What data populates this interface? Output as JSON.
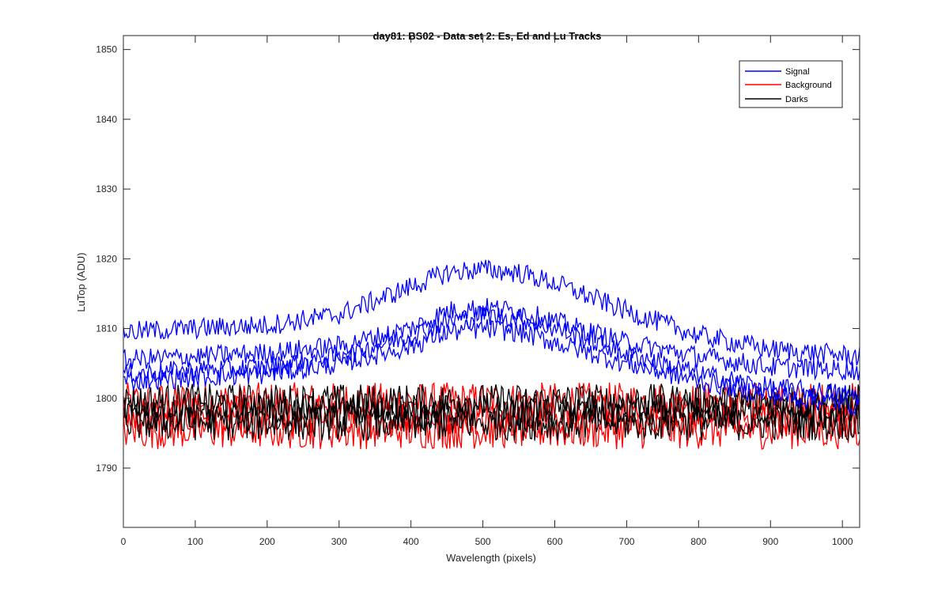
{
  "chart_data": {
    "type": "line",
    "title": "day81: BS02 - Data set 2: Es, Ed and Lu Tracks",
    "xlabel": "Wavelength (pixels)",
    "ylabel": "LuTop (ADU)",
    "xlim": [
      0,
      1024
    ],
    "ylim": [
      1781.5,
      1852
    ],
    "xticks": [
      0,
      100,
      200,
      300,
      400,
      500,
      600,
      700,
      800,
      900,
      1000
    ],
    "yticks": [
      1790,
      1800,
      1810,
      1820,
      1830,
      1840,
      1850
    ],
    "grid": false,
    "legend_position": "top-right",
    "colors": {
      "Signal": "#0000ff",
      "Background": "#ff0000",
      "Darks": "#000000"
    },
    "series": [
      {
        "name": "Signal",
        "group": "Signal",
        "x": [
          0,
          100,
          200,
          300,
          400,
          450,
          500,
          550,
          600,
          700,
          800,
          900,
          1024
        ],
        "values": [
          1809.5,
          1810,
          1810.5,
          1812,
          1816,
          1818,
          1818.5,
          1818,
          1816.5,
          1812.5,
          1809,
          1807,
          1806
        ]
      },
      {
        "group": "Signal",
        "x": [
          0,
          100,
          200,
          300,
          400,
          450,
          500,
          550,
          600,
          700,
          800,
          900,
          1024
        ],
        "values": [
          1805.5,
          1806,
          1806.5,
          1807.5,
          1810,
          1812.5,
          1813,
          1812.5,
          1811,
          1808,
          1806,
          1804.5,
          1804
        ]
      },
      {
        "group": "Signal",
        "x": [
          0,
          100,
          200,
          300,
          400,
          450,
          500,
          550,
          600,
          700,
          800,
          900,
          1024
        ],
        "values": [
          1803.5,
          1804,
          1804.5,
          1806,
          1809,
          1811,
          1812,
          1811.5,
          1810,
          1806.5,
          1803.5,
          1801.5,
          1800.5
        ]
      },
      {
        "group": "Signal",
        "x": [
          0,
          100,
          200,
          300,
          400,
          450,
          500,
          550,
          600,
          700,
          800,
          900,
          1024
        ],
        "values": [
          1802.5,
          1803,
          1803.5,
          1805,
          1807.5,
          1809.5,
          1810,
          1809.5,
          1808,
          1805,
          1802.5,
          1800.5,
          1799
        ]
      },
      {
        "name": "Background",
        "group": "Background",
        "x": [
          0,
          100,
          200,
          300,
          400,
          500,
          600,
          700,
          800,
          900,
          1024
        ],
        "values": [
          1799.5,
          1799.5,
          1799.5,
          1799.5,
          1799.5,
          1799.5,
          1799.5,
          1799.5,
          1799.5,
          1799.5,
          1799.5
        ]
      },
      {
        "group": "Background",
        "x": [
          0,
          100,
          200,
          300,
          400,
          500,
          600,
          700,
          800,
          900,
          1024
        ],
        "values": [
          1797.5,
          1797.5,
          1797.5,
          1797.5,
          1797.5,
          1797.5,
          1797.5,
          1797.5,
          1797.5,
          1797.5,
          1797.5
        ]
      },
      {
        "group": "Background",
        "x": [
          0,
          100,
          200,
          300,
          400,
          500,
          600,
          700,
          800,
          900,
          1024
        ],
        "values": [
          1795.5,
          1795.5,
          1795.5,
          1795.5,
          1795.5,
          1795.5,
          1795.5,
          1795.5,
          1795.5,
          1795.5,
          1795.5
        ]
      },
      {
        "name": "Darks",
        "group": "Darks",
        "x": [
          0,
          100,
          200,
          300,
          400,
          500,
          600,
          700,
          800,
          900,
          1024
        ],
        "values": [
          1799.5,
          1799.5,
          1799.5,
          1799.5,
          1799.5,
          1799.5,
          1799.5,
          1799.5,
          1799.5,
          1799.5,
          1799.5
        ]
      },
      {
        "group": "Darks",
        "x": [
          0,
          100,
          200,
          300,
          400,
          500,
          600,
          700,
          800,
          900,
          1024
        ],
        "values": [
          1798,
          1798,
          1798,
          1798,
          1798,
          1798,
          1798,
          1798,
          1798,
          1798,
          1798
        ]
      },
      {
        "group": "Darks",
        "x": [
          0,
          100,
          200,
          300,
          400,
          500,
          600,
          700,
          800,
          900,
          1024
        ],
        "values": [
          1796.5,
          1796.5,
          1796.5,
          1796.5,
          1796.5,
          1796.5,
          1796.5,
          1796.5,
          1796.5,
          1796.5,
          1796.5
        ]
      }
    ],
    "legend": [
      "Signal",
      "Background",
      "Darks"
    ]
  }
}
